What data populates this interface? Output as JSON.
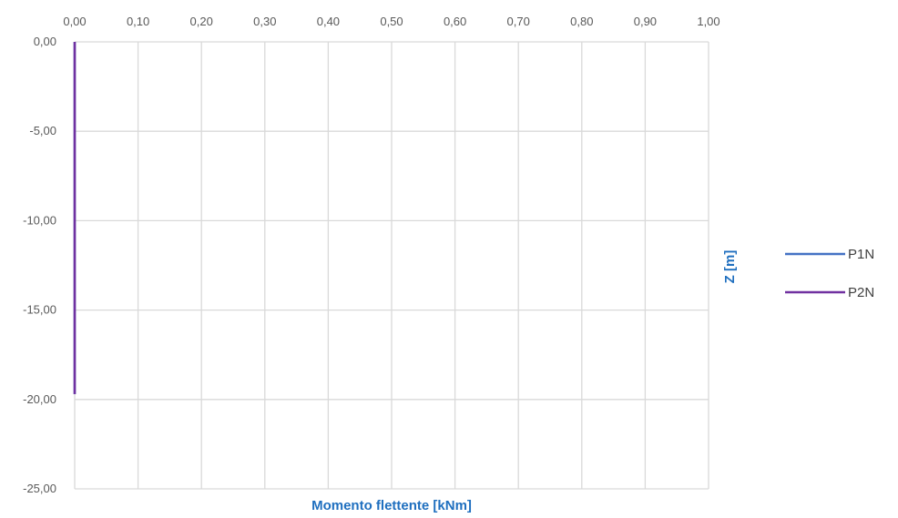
{
  "chart_data": {
    "type": "line",
    "title": "",
    "xlabel": "Momento flettente [kNm]",
    "ylabel": "Z [m]",
    "xlim": [
      0,
      1
    ],
    "ylim": [
      -25,
      0
    ],
    "x_ticks": [
      "0,00",
      "0,10",
      "0,20",
      "0,30",
      "0,40",
      "0,50",
      "0,60",
      "0,70",
      "0,80",
      "0,90",
      "1,00"
    ],
    "y_ticks": [
      "0,00",
      "-5,00",
      "-10,00",
      "-15,00",
      "-20,00",
      "-25,00"
    ],
    "x_axis_position": "top",
    "grid": true,
    "legend_position": "right",
    "series": [
      {
        "name": "P1N",
        "color": "#4472c4",
        "points": [
          [
            0,
            0
          ],
          [
            0,
            -19.7
          ]
        ]
      },
      {
        "name": "P2N",
        "color": "#7030a0",
        "points": [
          [
            0,
            0
          ],
          [
            0,
            -19.7
          ]
        ]
      }
    ]
  }
}
